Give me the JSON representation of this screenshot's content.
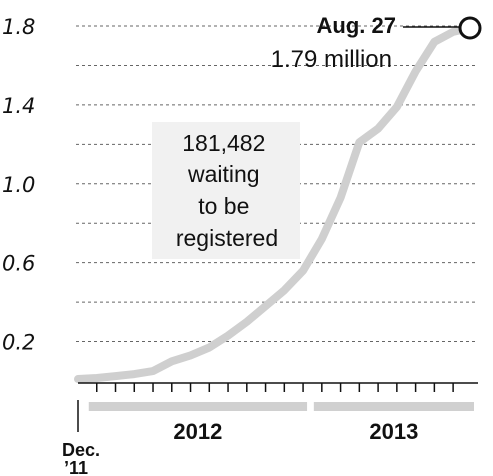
{
  "chart_data": {
    "type": "line",
    "title": "",
    "xlabel": "",
    "ylabel": "",
    "ylim": [
      0,
      1.8
    ],
    "y_ticks": [
      {
        "value": 1.8,
        "label": "1.8"
      },
      {
        "value": 1.4,
        "label": "1.4"
      },
      {
        "value": 1.0,
        "label": "1.0"
      },
      {
        "value": 0.6,
        "label": "0.6"
      },
      {
        "value": 0.2,
        "label": "0.2"
      }
    ],
    "grid": true,
    "x_start_label": [
      "Dec.",
      "’11"
    ],
    "years": [
      {
        "label": "2012",
        "start": 1,
        "end": 12
      },
      {
        "label": "2013",
        "start": 13,
        "end": 20.9
      }
    ],
    "series": [
      {
        "color": "#cfcfcf",
        "x": [
          0,
          1,
          2,
          3,
          4,
          5,
          6,
          7,
          8,
          9,
          10,
          11,
          12,
          13,
          14,
          15,
          16,
          17,
          18,
          19,
          20,
          20.9
        ],
        "values": [
          0.01,
          0.015,
          0.025,
          0.035,
          0.05,
          0.1,
          0.13,
          0.17,
          0.23,
          0.3,
          0.38,
          0.46,
          0.56,
          0.72,
          0.93,
          1.21,
          1.28,
          1.39,
          1.57,
          1.72,
          1.77,
          1.79
        ]
      }
    ],
    "annotations": {
      "end_point": {
        "date": "Aug. 27",
        "value_label": "1.79 million"
      },
      "note": [
        "181,482",
        "waiting",
        "to be",
        "registered"
      ]
    }
  }
}
